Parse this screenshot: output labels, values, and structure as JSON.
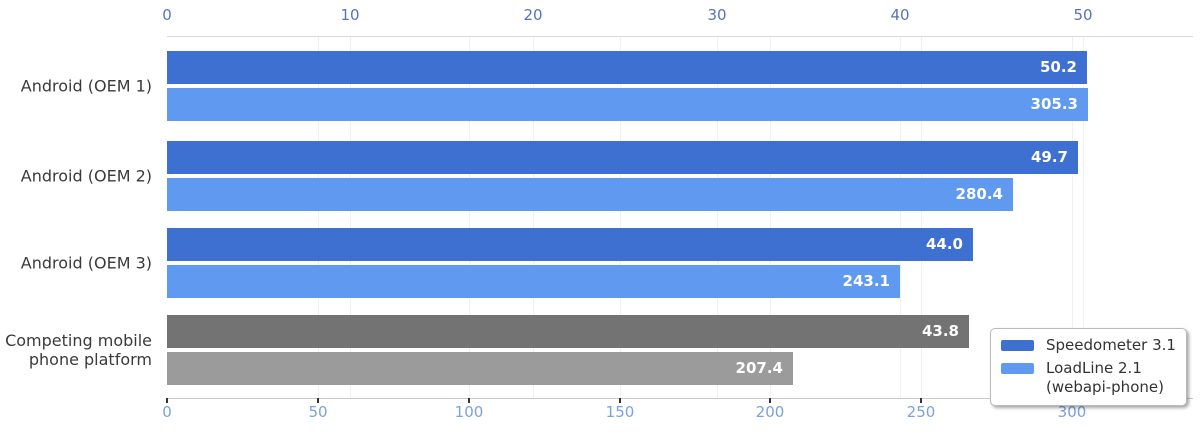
{
  "chart_data": {
    "type": "bar",
    "orientation": "horizontal",
    "categories": [
      "Android (OEM 1)",
      "Android (OEM 2)",
      "Android (OEM 3)",
      "Competing mobile\nphone platform"
    ],
    "series": [
      {
        "name": "Speedometer 3.1",
        "axis": "top",
        "values": [
          50.2,
          49.7,
          44.0,
          43.8
        ],
        "value_labels": [
          "50.2",
          "49.7",
          "44.0",
          "43.8"
        ],
        "bar_colors": [
          "#3e70d1",
          "#3e70d1",
          "#3e70d1",
          "#737373"
        ]
      },
      {
        "name": "LoadLine 2.1 (webapi-phone)",
        "axis": "bottom",
        "values": [
          305.3,
          280.4,
          243.1,
          207.4
        ],
        "value_labels": [
          "305.3",
          "280.4",
          "243.1",
          "207.4"
        ],
        "bar_colors": [
          "#5f9af0",
          "#5f9af0",
          "#5f9af0",
          "#9b9b9b"
        ]
      }
    ],
    "top_axis": {
      "ticks": [
        0,
        10,
        20,
        30,
        40,
        50
      ],
      "max_tick": 50,
      "label_color": "#5673bb"
    },
    "bottom_axis": {
      "ticks": [
        0,
        50,
        100,
        150,
        200,
        250,
        300
      ],
      "max_tick": 300,
      "label_color": "#7aa2db"
    },
    "value_label_color": "#ffffff",
    "grid": true,
    "legend_position": "lower right",
    "title": "",
    "xlabel": "",
    "ylabel": ""
  },
  "legend": {
    "entries": [
      {
        "label": "Speedometer 3.1",
        "swatch_color": "#3e70d1"
      },
      {
        "label": "LoadLine 2.1\n(webapi-phone)",
        "swatch_color": "#5f9af0"
      }
    ]
  }
}
